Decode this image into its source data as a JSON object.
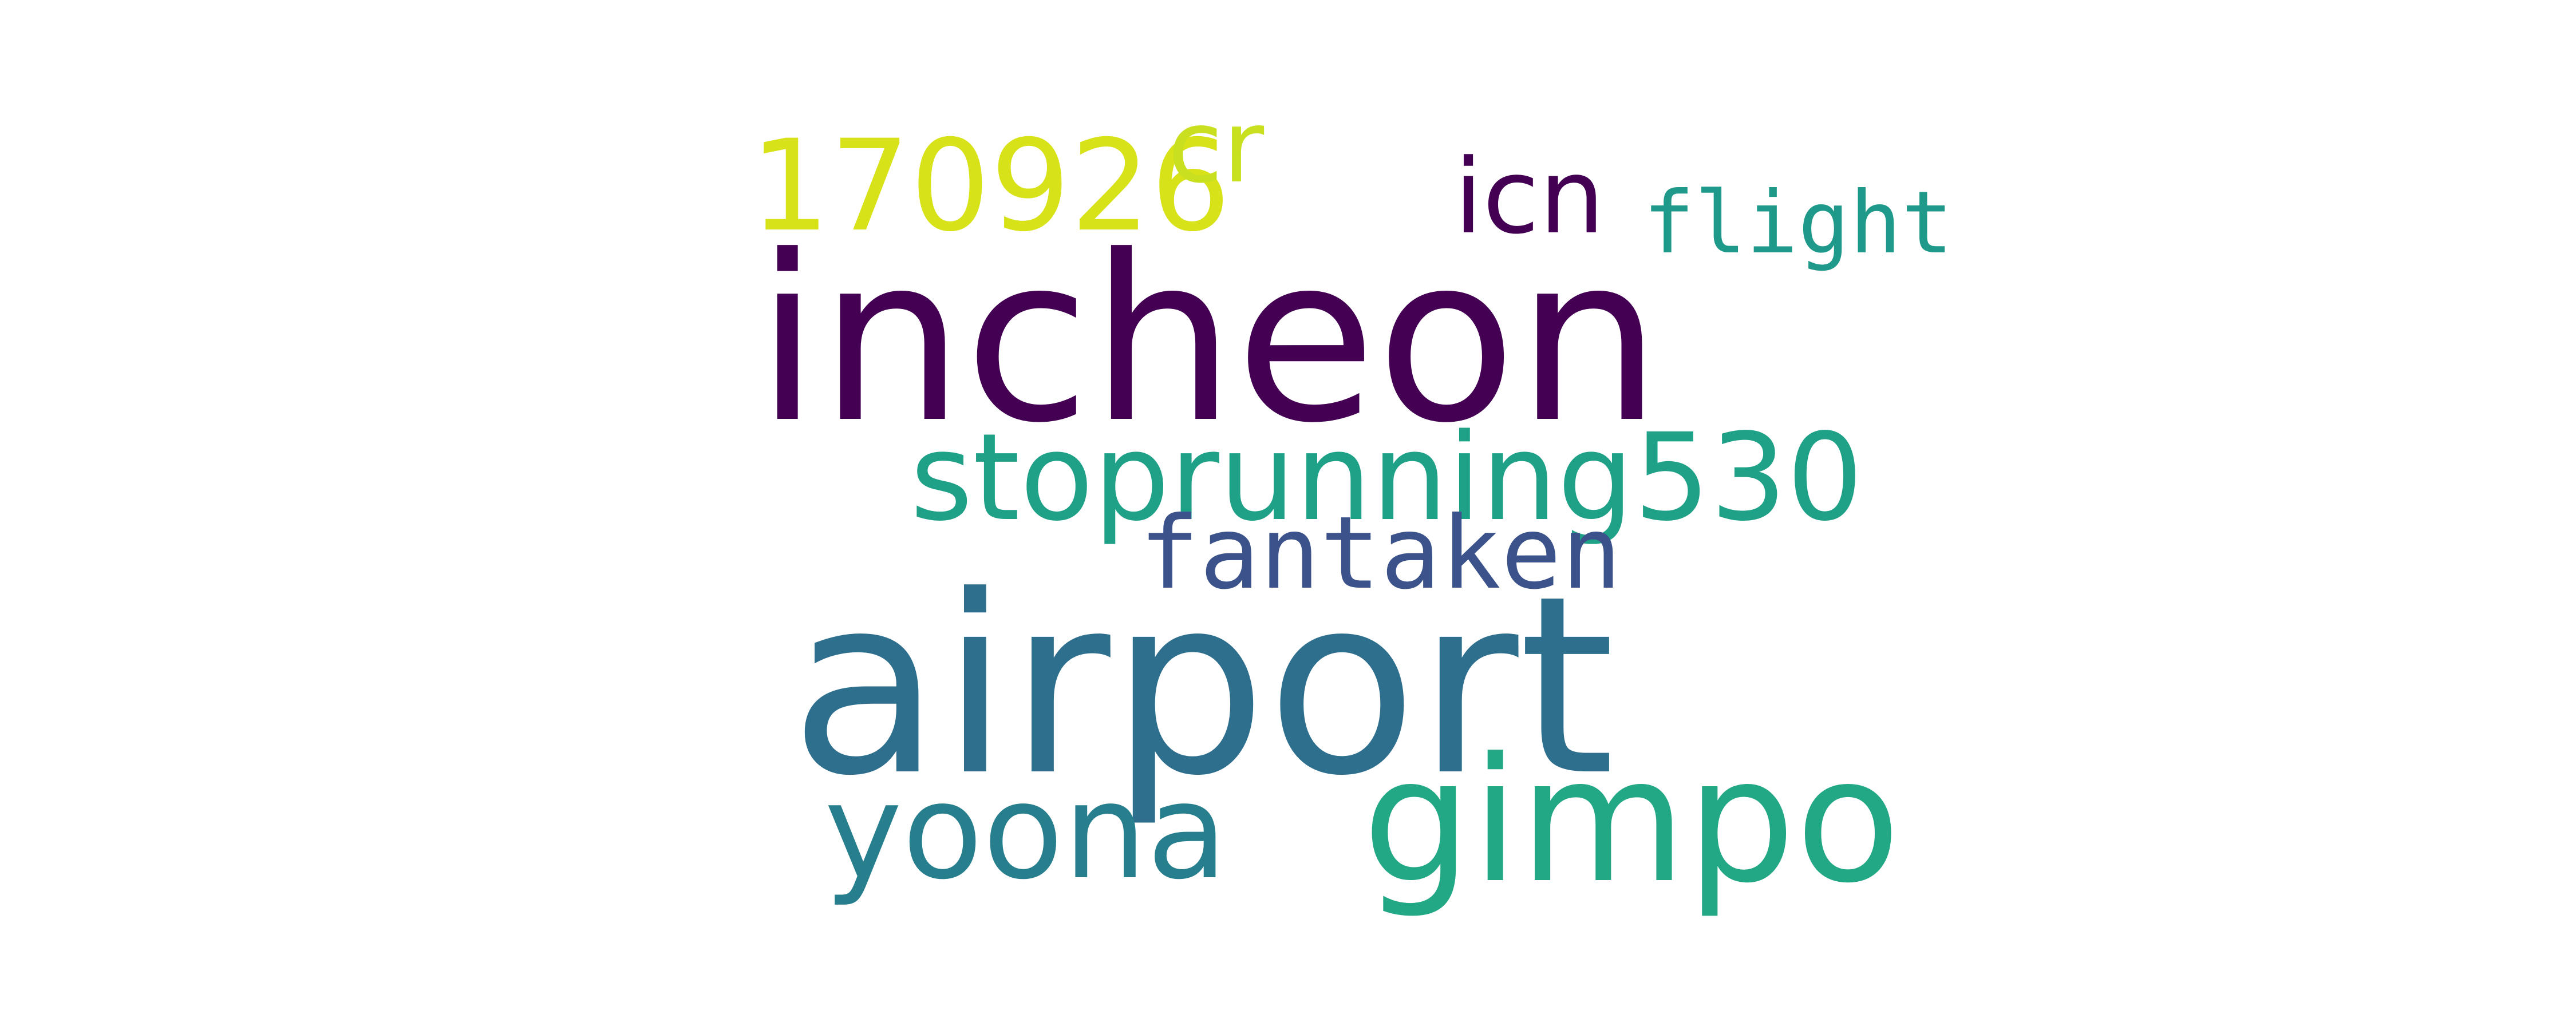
{
  "words": [
    {
      "text": "airport",
      "color": "#2e6f8e",
      "weight": 1.0
    },
    {
      "text": "incheon",
      "color": "#440154",
      "weight": 0.93
    },
    {
      "text": "gimpo",
      "color": "#22a884",
      "weight": 0.7
    },
    {
      "text": "stoprunning530",
      "color": "#1fa187",
      "weight": 0.49
    },
    {
      "text": "yoona",
      "color": "#277f8e",
      "weight": 0.53
    },
    {
      "text": "170926",
      "color": "#d8e219",
      "weight": 0.51
    },
    {
      "text": "fantaken",
      "color": "#3b528b",
      "weight": 0.41
    },
    {
      "text": "cr",
      "color": "#c8e020",
      "weight": 0.41
    },
    {
      "text": "icn",
      "color": "#440154",
      "weight": 0.42
    },
    {
      "text": "flight",
      "color": "#1f9a8a",
      "weight": 0.35
    }
  ]
}
